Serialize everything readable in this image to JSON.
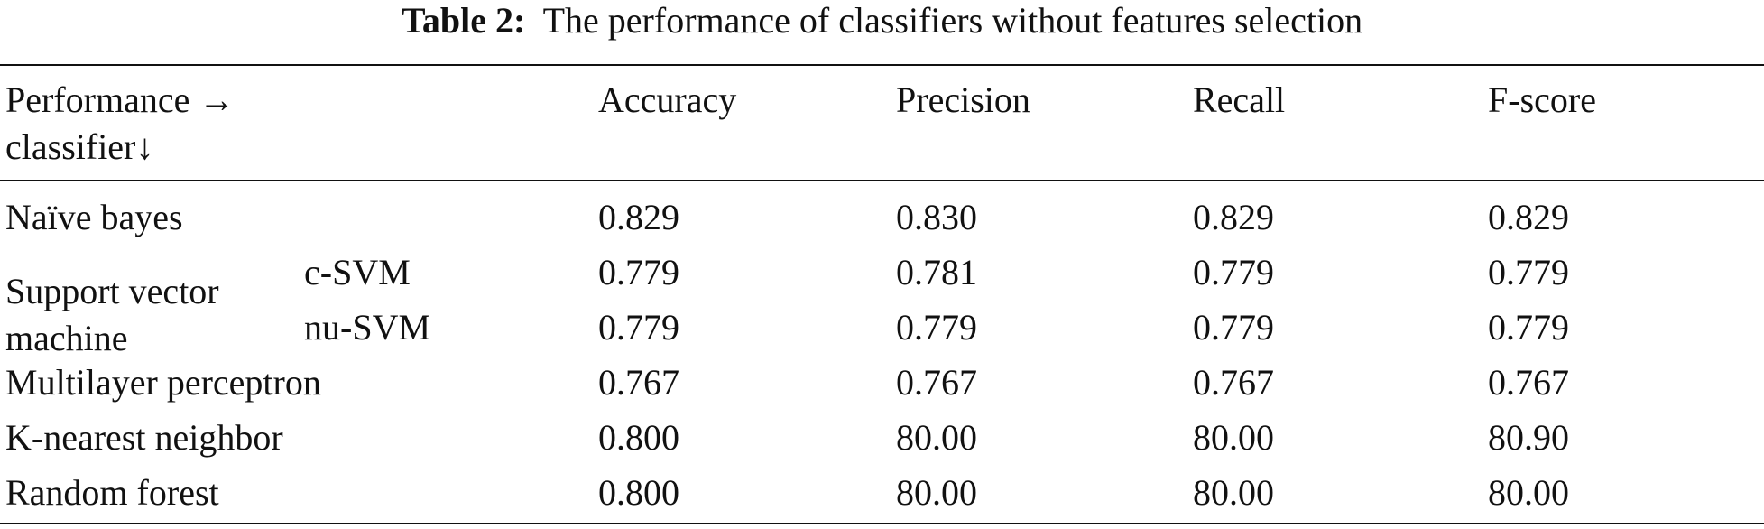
{
  "caption": {
    "label": "Table 2:",
    "text": "The performance of classifiers without features selection"
  },
  "header": {
    "corner": [
      "Performance →",
      "classifier↓"
    ],
    "columns": [
      "Accuracy",
      "Precision",
      "Recall",
      "F-score"
    ]
  },
  "rows": [
    {
      "classifier": "Naïve bayes",
      "values": [
        "0.829",
        "0.830",
        "0.829",
        "0.829"
      ]
    },
    {
      "classifier": "Support vector machine",
      "variants": [
        {
          "name": "c-SVM",
          "values": [
            "0.779",
            "0.781",
            "0.779",
            "0.779"
          ]
        },
        {
          "name": "nu-SVM",
          "values": [
            "0.779",
            "0.779",
            "0.779",
            "0.779"
          ]
        }
      ]
    },
    {
      "classifier": "Multilayer perceptron",
      "values": [
        "0.767",
        "0.767",
        "0.767",
        "0.767"
      ]
    },
    {
      "classifier": "K-nearest neighbor",
      "values": [
        "0.800",
        "80.00",
        "80.00",
        "80.90"
      ]
    },
    {
      "classifier": "Random forest",
      "values": [
        "0.800",
        "80.00",
        "80.00",
        "80.00"
      ]
    }
  ]
}
